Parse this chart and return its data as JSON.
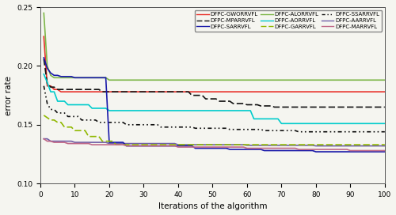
{
  "xlabel": "Iterations of the algorithm",
  "ylabel": "error rate",
  "xlim": [
    0,
    100
  ],
  "ylim": [
    0.1,
    0.25
  ],
  "yticks": [
    0.1,
    0.15,
    0.2,
    0.25
  ],
  "xticks": [
    0,
    10,
    20,
    30,
    40,
    50,
    60,
    70,
    80,
    90,
    100
  ],
  "algorithms": [
    "DFPC-GWORRVFL",
    "DFPC-ALORRVFL",
    "DFPC-SSARRVFL",
    "DFPC-MPARRVFL",
    "DFPC-AORRVFL",
    "DFPC-AARRVFL",
    "DFPC-SARRVFL",
    "DFPC-GARRVFL",
    "DFPC-MARRVFL"
  ],
  "colors": [
    "#e8302a",
    "#7db648",
    "#111111",
    "#111111",
    "#00cccc",
    "#7060a8",
    "#1a1aaa",
    "#90b800",
    "#c06888"
  ],
  "background": "#f5f5f0"
}
